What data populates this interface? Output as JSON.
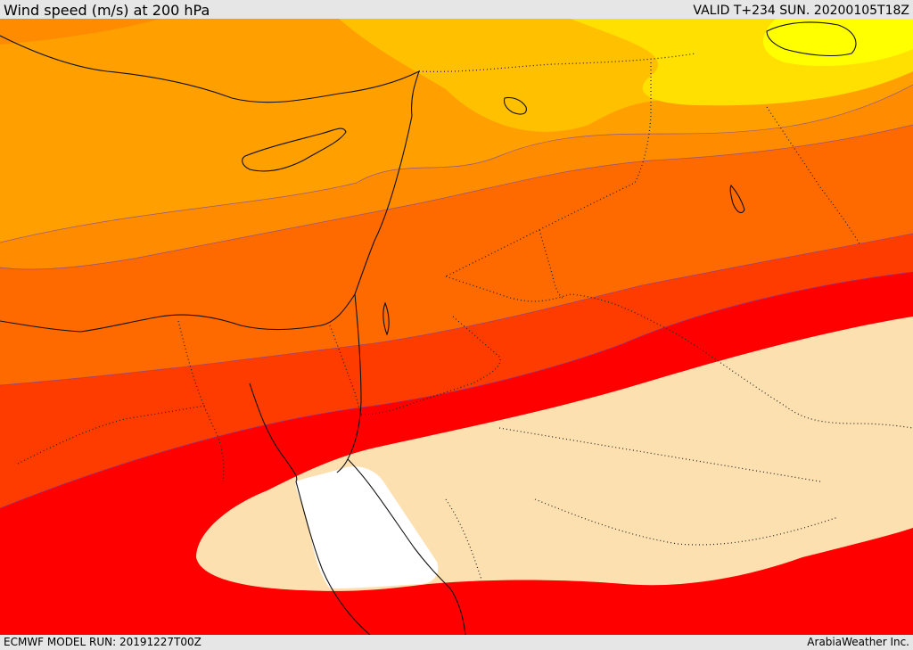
{
  "header": {
    "title": "Wind speed (m/s) at 200 hPa",
    "valid": "VALID T+234 SUN. 20200105T18Z"
  },
  "footer": {
    "model_run": "ECMWF MODEL RUN: 20191227T00Z",
    "credit": "ArabiaWeather Inc."
  },
  "map": {
    "variable": "wind speed",
    "level": "200 hPa",
    "colors": {
      "yellow": "#ffff00",
      "light_orange": "#ffc000",
      "orange": "#ffa000",
      "dark_orange": "#ff8c00",
      "orange_red": "#ff6a00",
      "red_orange": "#ff3c00",
      "red": "#ff0000",
      "tan": "#fde0b0",
      "white": "#ffffff"
    }
  }
}
